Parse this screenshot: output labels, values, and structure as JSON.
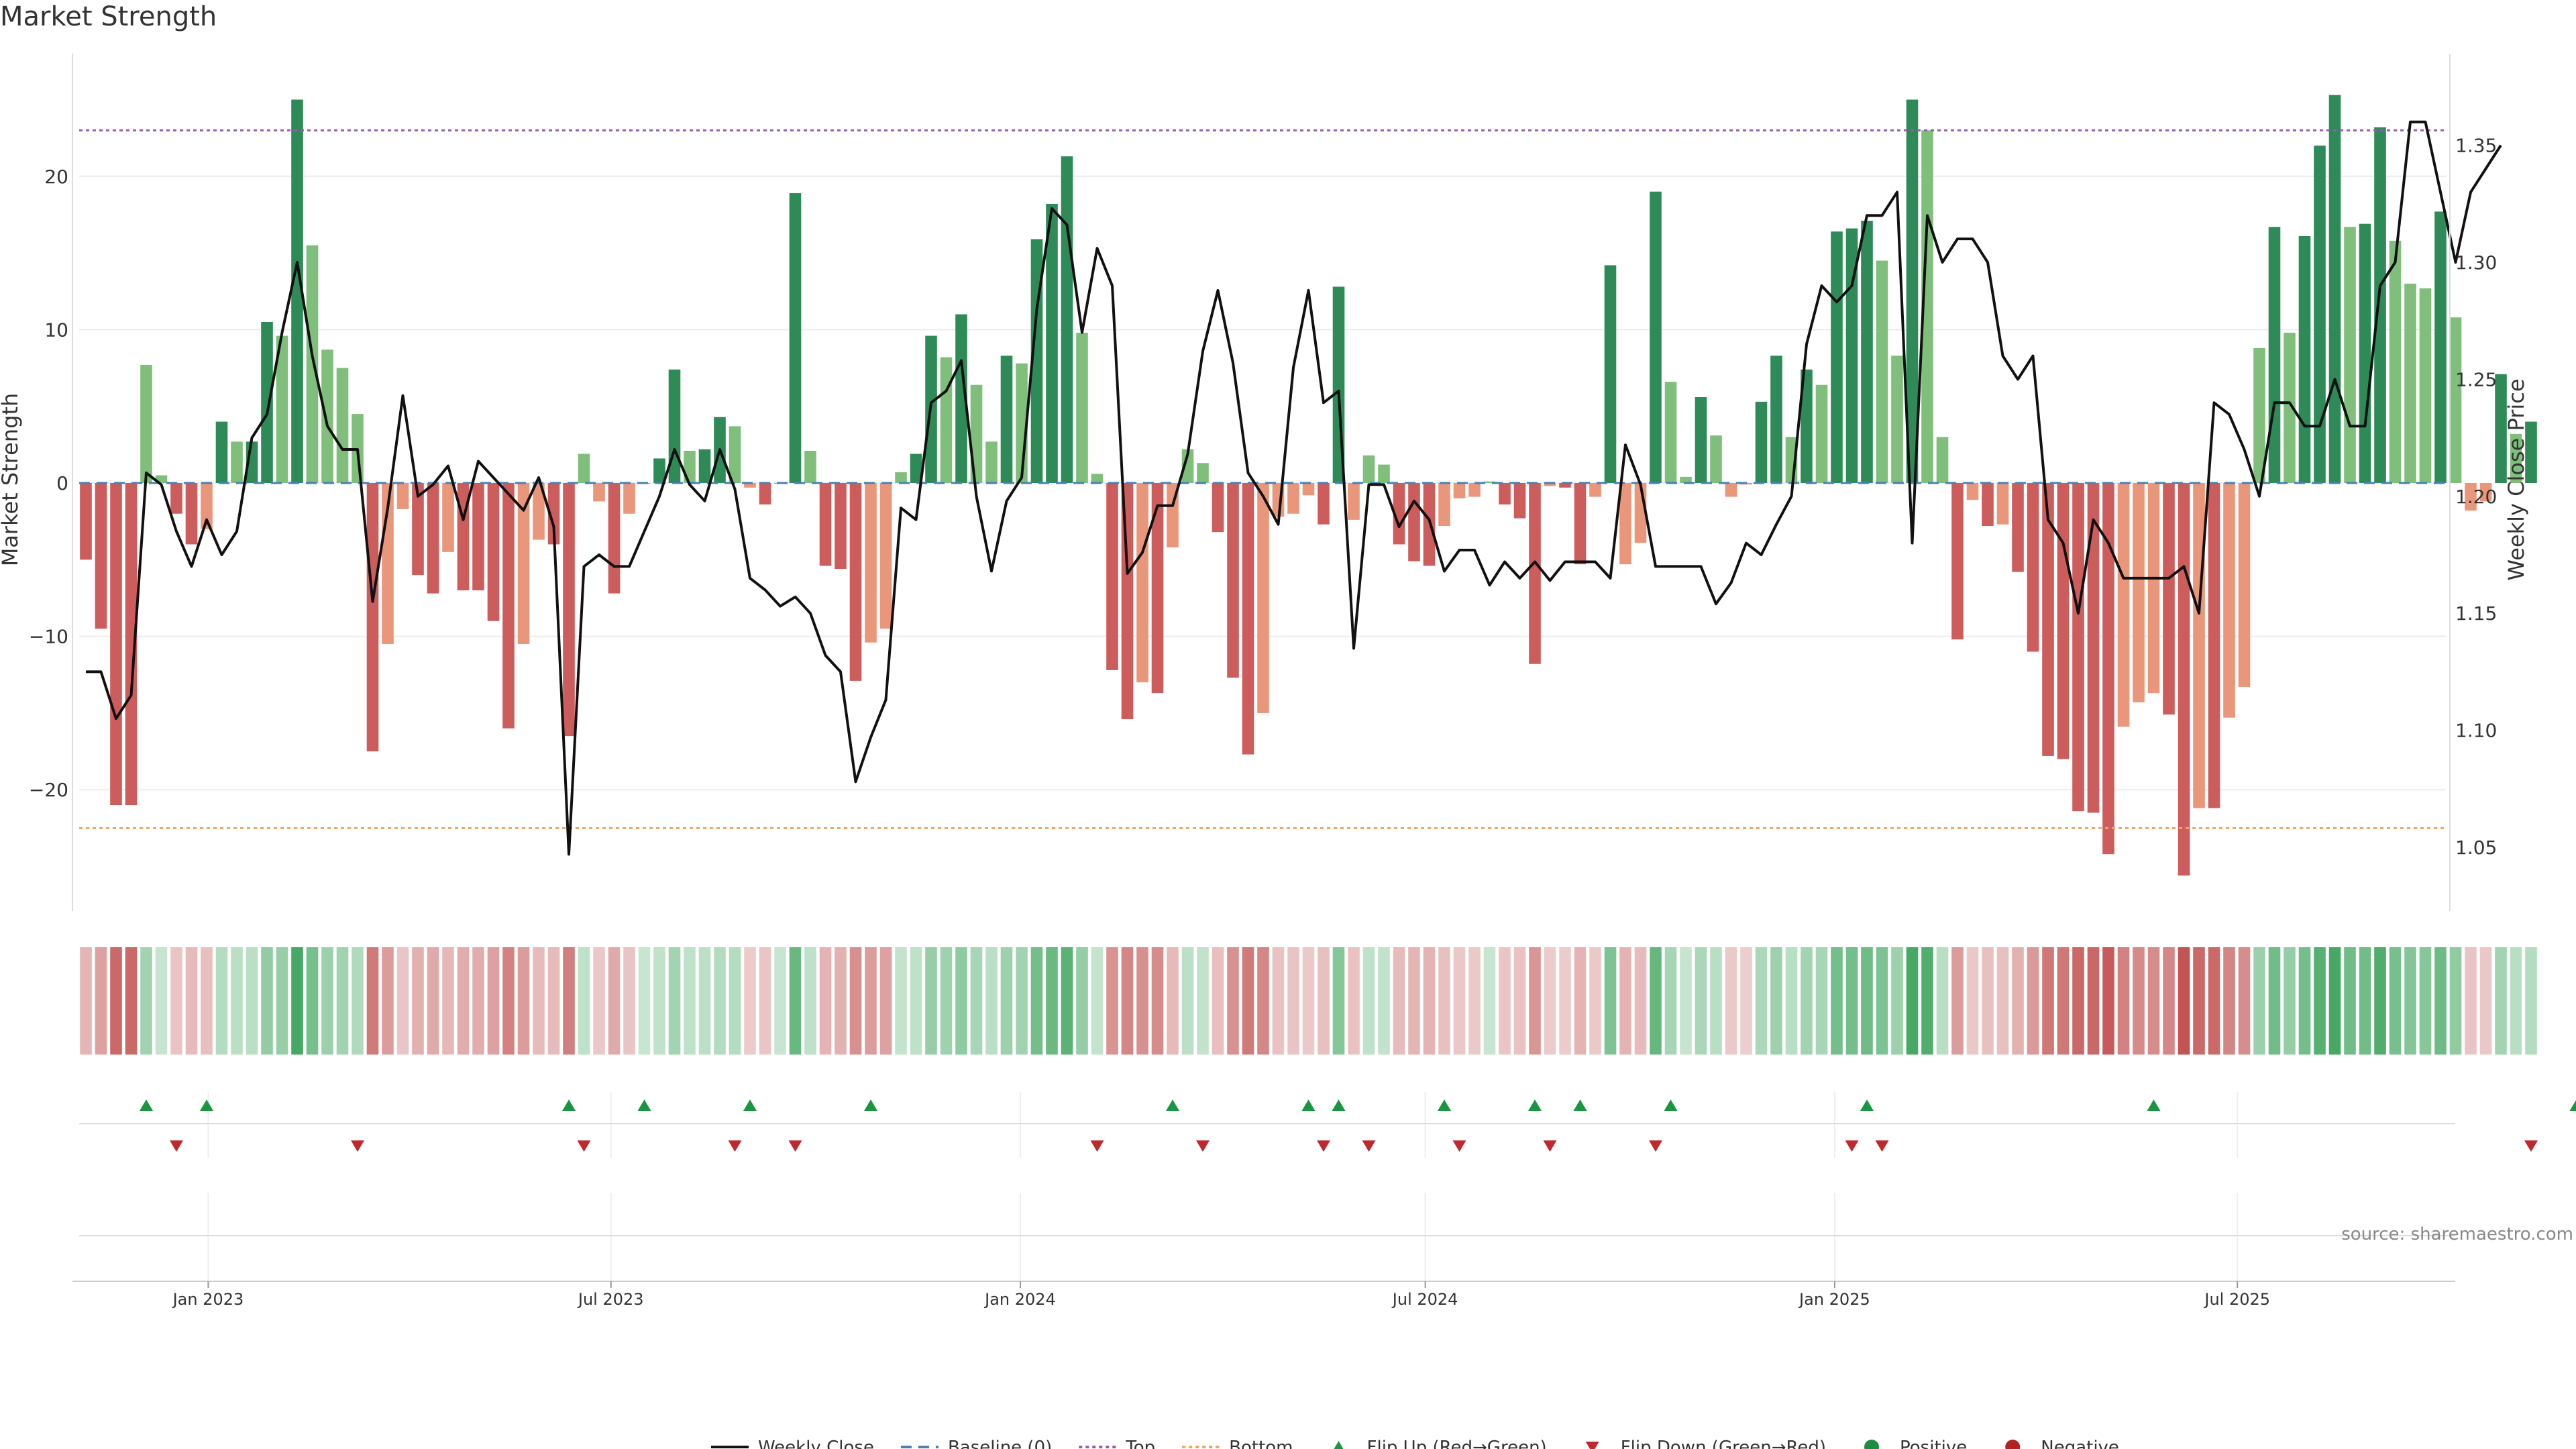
{
  "chart_data": {
    "type": "bar",
    "title": "Market Strength",
    "ylabel_left": "Market Strength",
    "ylabel_right": "Weekly Close Price",
    "ylim_left": [
      -28,
      28
    ],
    "ylim_right": [
      1.02,
      1.38
    ],
    "yticks_left": [
      -20,
      -10,
      0,
      10,
      20
    ],
    "yticks_right": [
      1.05,
      1.1,
      1.15,
      1.2,
      1.25,
      1.3,
      1.35
    ],
    "x_start_date": "2022-11-07",
    "x_end_date": "2025-11-10",
    "x_ticks": [
      {
        "label": "Jan 2023",
        "date": "2023-01-01"
      },
      {
        "label": "Jul 2023",
        "date": "2023-07-01"
      },
      {
        "label": "Jan 2024",
        "date": "2024-01-01"
      },
      {
        "label": "Jul 2024",
        "date": "2024-07-01"
      },
      {
        "label": "Jan 2025",
        "date": "2025-01-01"
      },
      {
        "label": "Jul 2025",
        "date": "2025-07-01"
      }
    ],
    "top_line": 23,
    "bottom_line": -22.5,
    "baseline": 0,
    "strength": [
      -5,
      -9.5,
      -21,
      -21,
      7.7,
      0.5,
      -2,
      -4,
      -3,
      4,
      2.7,
      2.7,
      10.5,
      9.6,
      25,
      15.5,
      8.7,
      7.5,
      4.5,
      -17.5,
      -10.5,
      -1.7,
      -6,
      -7.2,
      -4.5,
      -7,
      -7,
      -9,
      -16,
      -10.5,
      -3.7,
      -4,
      -16.5,
      1.9,
      -1.2,
      -7.2,
      -2,
      0,
      1.6,
      7.4,
      2.1,
      2.2,
      4.3,
      3.7,
      -0.3,
      -1.4,
      0,
      18.9,
      2.1,
      -5.4,
      -5.6,
      -12.9,
      -10.4,
      -9.5,
      0.7,
      1.9,
      9.6,
      8.2,
      11,
      6.4,
      2.7,
      8.3,
      7.8,
      15.9,
      18.2,
      21.3,
      9.8,
      0.6,
      -12.2,
      -15.4,
      -13,
      -13.7,
      -4.2,
      2.2,
      1.3,
      -3.2,
      -12.7,
      -17.7,
      -15,
      -2.2,
      -2,
      -0.8,
      -2.7,
      12.8,
      -2.4,
      1.8,
      1.2,
      -4,
      -5.1,
      -5.4,
      -2.8,
      -1,
      -0.9,
      0.1,
      -1.4,
      -2.3,
      -11.8,
      -0.2,
      -0.3,
      -5.3,
      -0.9,
      14.2,
      -5.3,
      -3.9,
      19,
      6.6,
      0.4,
      5.6,
      3.1,
      -0.9,
      -0.1,
      5.3,
      8.3,
      3,
      7.4,
      6.4,
      16.4,
      16.6,
      17.1,
      14.5,
      8.3,
      25,
      23,
      3,
      -10.2,
      -1.1,
      -2.8,
      -2.7,
      -5.8,
      -11,
      -17.8,
      -18,
      -21.4,
      -21.5,
      -24.2,
      -15.9,
      -14.3,
      -13.7,
      -15.1,
      -25.6,
      -21.2,
      -21.2,
      -15.3,
      -13.3,
      8.8,
      16.7,
      9.8,
      16.1,
      22,
      25.3,
      16.7,
      16.9,
      23.2,
      15.8,
      13,
      12.7,
      17.7,
      10.8,
      -1.8,
      -1.2,
      7.1,
      3.2,
      4
    ],
    "close": [
      1.125,
      1.125,
      1.105,
      1.115,
      1.21,
      1.205,
      1.185,
      1.17,
      1.19,
      1.175,
      1.185,
      1.225,
      1.235,
      1.27,
      1.3,
      1.26,
      1.23,
      1.22,
      1.22,
      1.155,
      1.195,
      1.243,
      1.2,
      1.205,
      1.213,
      1.19,
      1.215,
      1.208,
      1.201,
      1.194,
      1.208,
      1.187,
      1.047,
      1.17,
      1.175,
      1.17,
      1.17,
      1.185,
      1.2,
      1.22,
      1.205,
      1.198,
      1.22,
      1.203,
      1.165,
      1.16,
      1.153,
      1.157,
      1.15,
      1.132,
      1.125,
      1.078,
      1.097,
      1.113,
      1.195,
      1.19,
      1.24,
      1.245,
      1.258,
      1.2,
      1.168,
      1.198,
      1.208,
      1.28,
      1.323,
      1.316,
      1.27,
      1.306,
      1.29,
      1.167,
      1.176,
      1.196,
      1.196,
      1.218,
      1.262,
      1.288,
      1.257,
      1.21,
      1.2,
      1.188,
      1.255,
      1.288,
      1.24,
      1.245,
      1.135,
      1.205,
      1.205,
      1.187,
      1.198,
      1.19,
      1.168,
      1.177,
      1.177,
      1.162,
      1.172,
      1.165,
      1.172,
      1.164,
      1.172,
      1.172,
      1.172,
      1.165,
      1.222,
      1.205,
      1.17,
      1.17,
      1.17,
      1.17,
      1.154,
      1.163,
      1.18,
      1.175,
      1.188,
      1.2,
      1.265,
      1.29,
      1.283,
      1.29,
      1.32,
      1.32,
      1.33,
      1.18,
      1.32,
      1.3,
      1.31,
      1.31,
      1.3,
      1.26,
      1.25,
      1.26,
      1.19,
      1.18,
      1.15,
      1.19,
      1.18,
      1.165,
      1.165,
      1.165,
      1.165,
      1.17,
      1.15,
      1.24,
      1.235,
      1.22,
      1.2,
      1.24,
      1.24,
      1.23,
      1.23,
      1.25,
      1.23,
      1.23,
      1.29,
      1.3,
      1.36,
      1.36,
      1.33,
      1.3,
      1.33,
      1.34,
      1.35
    ],
    "flip_up_weeks": [
      4,
      8,
      32,
      37,
      44,
      52,
      72,
      81,
      83,
      90,
      96,
      99,
      105,
      118,
      137,
      165
    ],
    "flip_down_weeks": [
      6,
      18,
      33,
      43,
      47,
      67,
      74,
      82,
      85,
      91,
      97,
      104,
      117,
      119,
      162
    ],
    "legend": [
      "Weekly Close",
      "Baseline (0)",
      "Top",
      "Bottom",
      "Flip Up (Red→Green)",
      "Flip Down (Green→Red)",
      "Positive",
      "Negative"
    ],
    "source": "source: sharemaestro.com",
    "colors": {
      "green_strong": "#2e8b57",
      "green_light": "#7fbf7b",
      "red_strong": "#cd5c5c",
      "red_light": "#e9967a",
      "close_line": "#111111",
      "baseline": "#4682b4",
      "top": "#9b59b6",
      "bottom": "#f4a460",
      "flip_up": "#1a9641",
      "flip_down": "#c0282e",
      "positive": "#1e8e3e",
      "negative": "#b22222"
    }
  }
}
